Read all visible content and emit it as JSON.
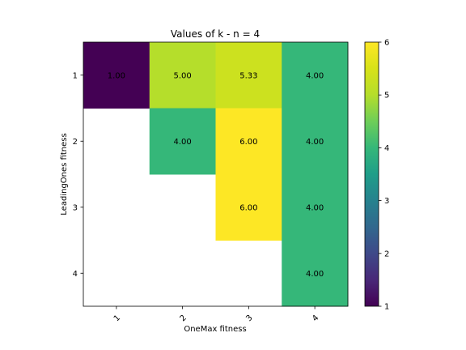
{
  "chart_data": {
    "type": "heatmap",
    "title": "Values of k - n = 4",
    "xlabel": "OneMax fitness",
    "ylabel": "LeadingOnes fitness",
    "x_ticks": [
      "1",
      "2",
      "3",
      "4"
    ],
    "y_ticks": [
      "1",
      "2",
      "3",
      "4"
    ],
    "cells": [
      {
        "leadingones": 1,
        "onemax": 1,
        "value": 1.0,
        "label": "1.00"
      },
      {
        "leadingones": 1,
        "onemax": 2,
        "value": 5.0,
        "label": "5.00"
      },
      {
        "leadingones": 1,
        "onemax": 3,
        "value": 5.33,
        "label": "5.33"
      },
      {
        "leadingones": 1,
        "onemax": 4,
        "value": 4.0,
        "label": "4.00"
      },
      {
        "leadingones": 2,
        "onemax": 2,
        "value": 4.0,
        "label": "4.00"
      },
      {
        "leadingones": 2,
        "onemax": 3,
        "value": 6.0,
        "label": "6.00"
      },
      {
        "leadingones": 2,
        "onemax": 4,
        "value": 4.0,
        "label": "4.00"
      },
      {
        "leadingones": 3,
        "onemax": 3,
        "value": 6.0,
        "label": "6.00"
      },
      {
        "leadingones": 3,
        "onemax": 4,
        "value": 4.0,
        "label": "4.00"
      },
      {
        "leadingones": 4,
        "onemax": 4,
        "value": 4.0,
        "label": "4.00"
      }
    ],
    "colorbar": {
      "colormap": "viridis",
      "min": 1,
      "max": 6,
      "ticks": [
        "1",
        "2",
        "3",
        "4",
        "5",
        "6"
      ]
    },
    "grid": false
  }
}
